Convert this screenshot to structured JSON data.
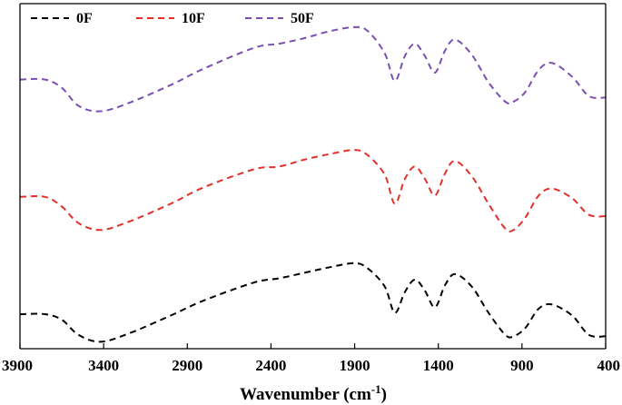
{
  "chart_data": {
    "type": "line",
    "title": "",
    "xlabel": "Wavenumber (cm",
    "xlabel_superscript": "-1",
    "xlabel_suffix": ")",
    "ylabel": "",
    "xlim": [
      3900,
      400
    ],
    "x_reversed": true,
    "xticks": [
      "3900",
      "3400",
      "2900",
      "2400",
      "1900",
      "1400",
      "900",
      "400"
    ],
    "xtick_values": [
      3900,
      3400,
      2900,
      2400,
      1900,
      1400,
      900,
      400
    ],
    "y_ticks_shown": false,
    "grid": false,
    "legend_placement": "top-left",
    "line_style": "dashed",
    "series": [
      {
        "name": "0F",
        "color": "#000000",
        "x": [
          3900,
          3750,
          3650,
          3550,
          3420,
          3250,
          3000,
          2800,
          2500,
          2350,
          2200,
          2050,
          1900,
          1820,
          1720,
          1660,
          1600,
          1540,
          1480,
          1420,
          1360,
          1300,
          1200,
          1100,
          1000,
          950,
          880,
          800,
          720,
          600,
          500,
          400
        ],
        "y": [
          0.2,
          0.2,
          0.16,
          0.05,
          0.0,
          0.06,
          0.19,
          0.3,
          0.43,
          0.46,
          0.5,
          0.54,
          0.57,
          0.53,
          0.4,
          0.21,
          0.36,
          0.45,
          0.37,
          0.25,
          0.41,
          0.49,
          0.4,
          0.21,
          0.05,
          0.04,
          0.1,
          0.24,
          0.27,
          0.19,
          0.05,
          0.04
        ]
      },
      {
        "name": "10F",
        "color": "#e0312b",
        "x": [
          3900,
          3750,
          3650,
          3550,
          3420,
          3250,
          3000,
          2800,
          2500,
          2350,
          2200,
          2050,
          1900,
          1820,
          1720,
          1660,
          1600,
          1540,
          1480,
          1420,
          1360,
          1300,
          1200,
          1100,
          1000,
          950,
          880,
          800,
          720,
          600,
          500,
          400
        ],
        "y": [
          1.05,
          1.05,
          0.98,
          0.86,
          0.81,
          0.87,
          1.0,
          1.12,
          1.25,
          1.27,
          1.32,
          1.36,
          1.39,
          1.35,
          1.21,
          1.0,
          1.18,
          1.27,
          1.18,
          1.06,
          1.22,
          1.31,
          1.2,
          1.0,
          0.82,
          0.81,
          0.9,
          1.06,
          1.11,
          1.04,
          0.92,
          0.91
        ]
      },
      {
        "name": "50F",
        "color": "#7a4fb0",
        "x": [
          3900,
          3750,
          3650,
          3550,
          3420,
          3250,
          3000,
          2800,
          2500,
          2350,
          2200,
          2050,
          1900,
          1820,
          1720,
          1660,
          1600,
          1540,
          1480,
          1420,
          1360,
          1300,
          1200,
          1100,
          1000,
          950,
          880,
          800,
          720,
          600,
          500,
          400
        ],
        "y": [
          1.9,
          1.9,
          1.84,
          1.71,
          1.67,
          1.73,
          1.86,
          1.98,
          2.13,
          2.16,
          2.2,
          2.25,
          2.28,
          2.25,
          2.09,
          1.89,
          2.07,
          2.16,
          2.07,
          1.95,
          2.11,
          2.19,
          2.08,
          1.88,
          1.74,
          1.74,
          1.81,
          1.97,
          2.02,
          1.92,
          1.78,
          1.77
        ]
      }
    ]
  }
}
